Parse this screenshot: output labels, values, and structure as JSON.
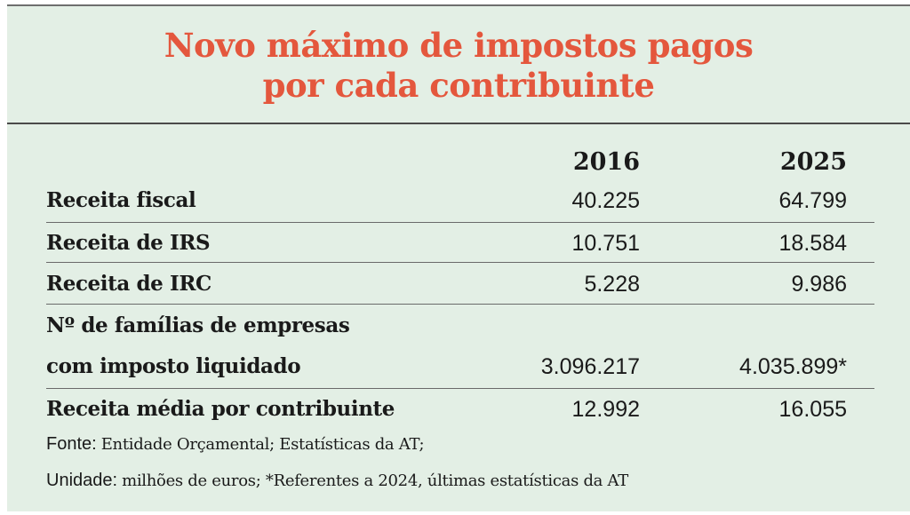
{
  "title_line1": "Novo máximo de impostos pagos",
  "title_line2": "por cada contribuinte",
  "columns": [
    "2016",
    "2025"
  ],
  "rows": [
    {
      "label": "Receita fiscal",
      "v2016": "40.225",
      "v2025": "64.799"
    },
    {
      "label": "Receita de IRS",
      "v2016": "10.751",
      "v2025": "18.584"
    },
    {
      "label": "Receita de IRC",
      "v2016": "5.228",
      "v2025": "9.986"
    },
    {
      "label_line1": "Nº de famílias de empresas",
      "label_line2": "com imposto liquidado",
      "v2016": "3.096.217",
      "v2025": "4.035.899*"
    },
    {
      "label": "Receita média por contribuinte",
      "v2016": "12.992",
      "v2025": "16.055"
    }
  ],
  "footer": {
    "source_key": "Fonte:",
    "source_text": "Entidade Orçamental; Estatísticas da AT;",
    "unit_key": "Unidade:",
    "unit_text": "milhões de euros; *Referentes a 2024, últimas estatísticas da AT"
  },
  "colors": {
    "background": "#e3efe5",
    "title": "#e4573d",
    "text": "#1a1a1a"
  }
}
